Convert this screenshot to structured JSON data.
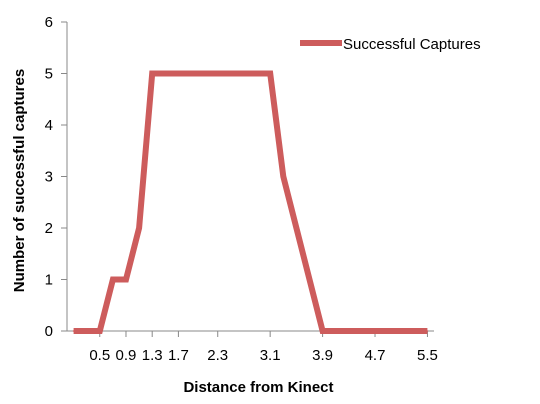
{
  "chart_data": {
    "type": "line",
    "title": "",
    "xlabel": "Distance from Kinect",
    "ylabel": "Number of successful captures",
    "x": [
      "0.1",
      "0.3",
      "0.5",
      "0.7",
      "0.9",
      "1.1",
      "1.3",
      "1.5",
      "1.7",
      "1.9",
      "2.1",
      "2.3",
      "2.5",
      "2.7",
      "2.9",
      "3.1",
      "3.3",
      "3.5",
      "3.7",
      "3.9",
      "4.1",
      "4.3",
      "4.5",
      "4.7",
      "4.9",
      "5.1",
      "5.3",
      "5.5"
    ],
    "x_tick_labels": [
      "0.5",
      "0.9",
      "1.3",
      "1.7",
      "2.3",
      "3.1",
      "3.9",
      "4.7",
      "5.5"
    ],
    "series": [
      {
        "name": "Successful Captures",
        "color": "#cd5c5c",
        "points": [
          [
            0.1,
            0
          ],
          [
            0.5,
            0
          ],
          [
            0.7,
            1
          ],
          [
            0.9,
            1
          ],
          [
            1.1,
            2
          ],
          [
            1.3,
            5
          ],
          [
            3.1,
            5
          ],
          [
            3.3,
            3
          ],
          [
            3.5,
            2
          ],
          [
            3.7,
            1
          ],
          [
            3.9,
            0
          ],
          [
            5.5,
            0
          ]
        ]
      }
    ],
    "ylim": [
      0,
      6
    ],
    "yticks": [
      0,
      1,
      2,
      3,
      4,
      5,
      6
    ],
    "grid": false,
    "legend": "top-right"
  }
}
